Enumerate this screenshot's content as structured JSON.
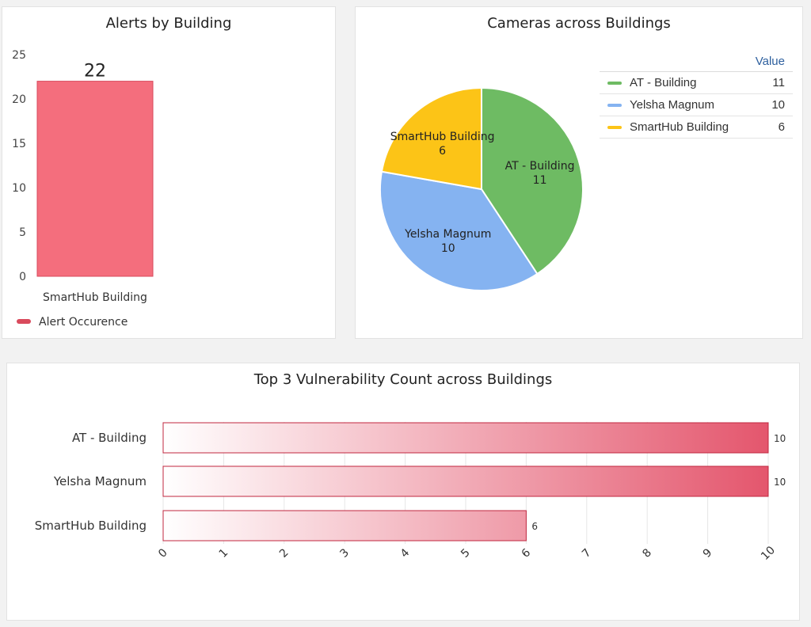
{
  "colors": {
    "alert_bar": "#f46e7d",
    "alert_bar_border": "#d94a5c",
    "pie": [
      "#6ebb63",
      "#85b3f1",
      "#fcc417"
    ],
    "hbar_dark": "#e4566d",
    "hbar_border": "#c1273f"
  },
  "chart_data": [
    {
      "type": "bar",
      "title": "Alerts by Building",
      "categories": [
        "SmartHub Building"
      ],
      "series": [
        {
          "name": "Alert Occurence",
          "values": [
            22
          ]
        }
      ],
      "yticks": [
        "25",
        "20",
        "15",
        "10",
        "5",
        "0"
      ],
      "ylim": [
        0,
        25
      ],
      "legend": "bottom-left"
    },
    {
      "type": "pie",
      "title": "Cameras across Buildings",
      "value_header": "Value",
      "labels": [
        "AT - Building",
        "Yelsha Magnum",
        "SmartHub Building"
      ],
      "values": [
        11,
        10,
        6
      ],
      "legend": "right"
    },
    {
      "type": "bar",
      "orientation": "horizontal",
      "title": "Top 3 Vulnerability Count across Buildings",
      "categories": [
        "AT - Building",
        "Yelsha Magnum",
        "SmartHub Building"
      ],
      "values": [
        10,
        10,
        6
      ],
      "xticks": [
        "0",
        "1",
        "2",
        "3",
        "4",
        "5",
        "6",
        "7",
        "8",
        "9",
        "10"
      ],
      "xlim": [
        0,
        10
      ]
    }
  ]
}
